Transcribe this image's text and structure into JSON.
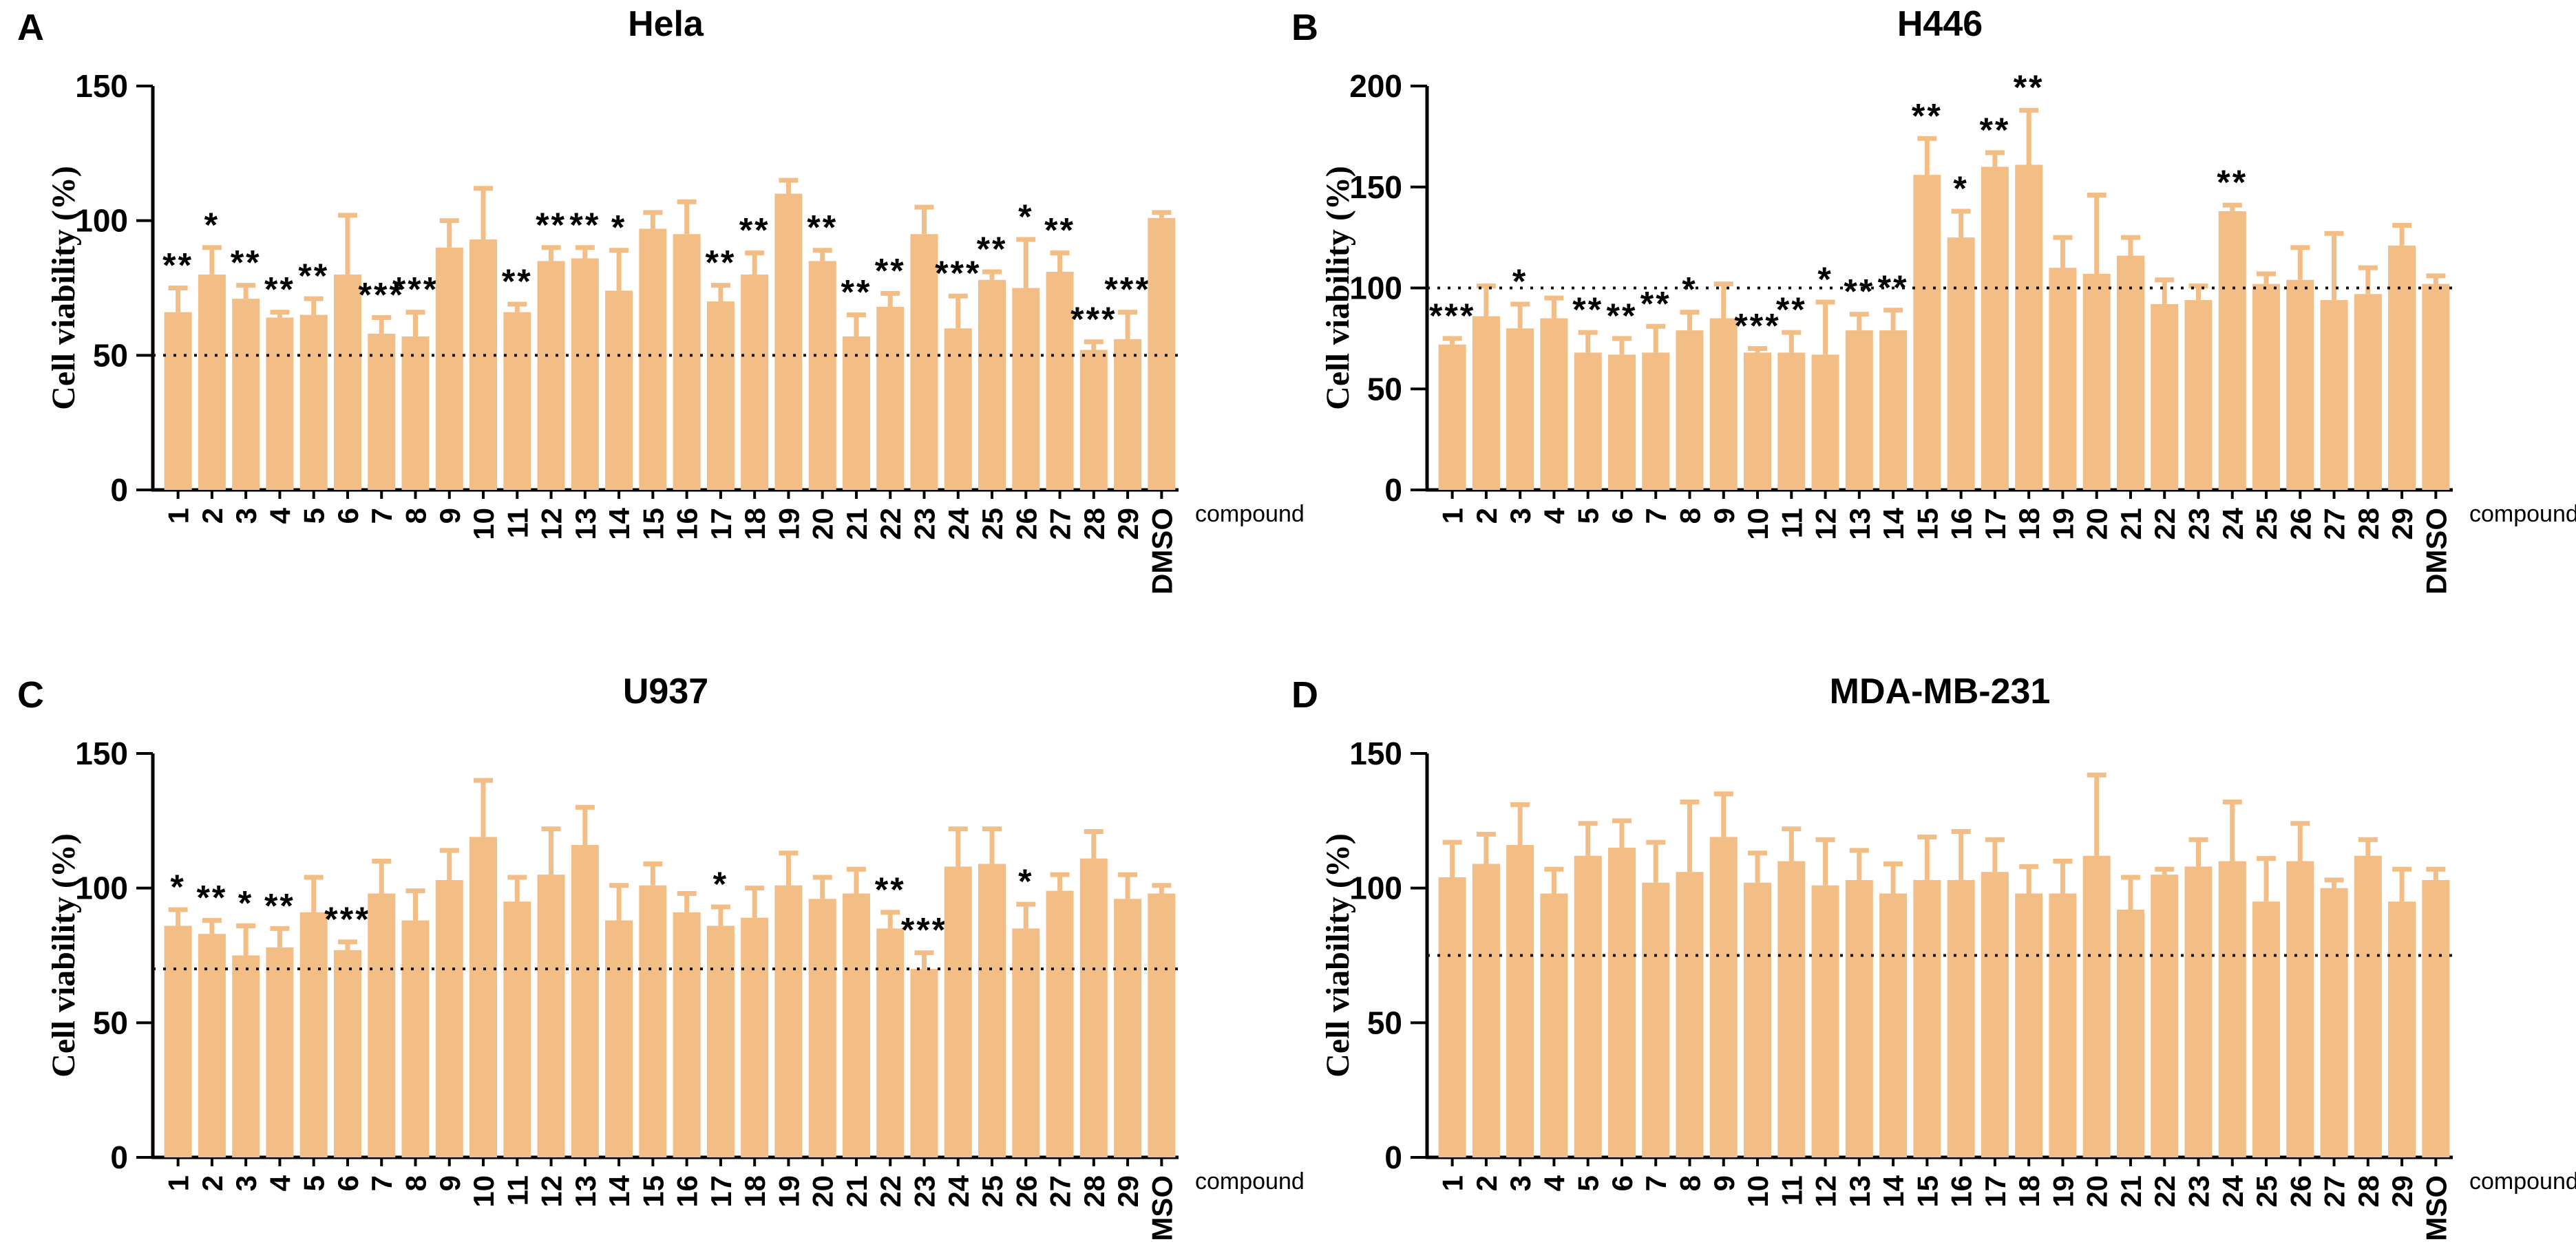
{
  "figure": {
    "background": "#ffffff",
    "xlabel": "compound",
    "ylabel": "Cell viability (%)"
  },
  "colors": {
    "bar": "#F3BE85",
    "error_bar": "#F3BE85",
    "axis": "#000000",
    "text": "#000000",
    "dotted_line": "#111111"
  },
  "chart_data": [
    {
      "type": "bar",
      "panel_letter": "A",
      "title": "Hela",
      "ylabel": "Cell viability (%)",
      "xlabel": "compound",
      "ylim": [
        0,
        150
      ],
      "yticks": [
        0,
        50,
        100,
        150
      ],
      "dotted_line": 50,
      "legend": "none",
      "grid": false,
      "row": 0,
      "col": 0,
      "categories": [
        "1",
        "2",
        "3",
        "4",
        "5",
        "6",
        "7",
        "8",
        "9",
        "10",
        "11",
        "12",
        "13",
        "14",
        "15",
        "16",
        "17",
        "18",
        "19",
        "20",
        "21",
        "22",
        "23",
        "24",
        "25",
        "26",
        "27",
        "28",
        "29",
        "DMSO"
      ],
      "values": [
        66,
        80,
        71,
        64,
        65,
        80,
        58,
        57,
        90,
        93,
        66,
        85,
        86,
        74,
        97,
        95,
        70,
        80,
        110,
        85,
        57,
        68,
        95,
        60,
        78,
        75,
        81,
        52,
        56,
        101
      ],
      "errors": [
        9,
        10,
        5,
        2,
        6,
        22,
        6,
        9,
        10,
        19,
        3,
        5,
        4,
        15,
        6,
        12,
        6,
        8,
        5,
        4,
        8,
        5,
        10,
        12,
        3,
        18,
        7,
        3,
        10,
        2
      ],
      "significance": [
        "**",
        "*",
        "**",
        "**",
        "**",
        null,
        "***",
        "***",
        null,
        null,
        "**",
        "**",
        "**",
        "*",
        null,
        null,
        "**",
        "**",
        null,
        "**",
        "**",
        "**",
        null,
        "***",
        "**",
        "*",
        "**",
        "***",
        "***",
        null
      ]
    },
    {
      "type": "bar",
      "panel_letter": "B",
      "title": "H446",
      "ylabel": "Cell viability (%)",
      "xlabel": "compound",
      "ylim": [
        0,
        200
      ],
      "yticks": [
        0,
        50,
        100,
        150,
        200
      ],
      "dotted_line": 100,
      "legend": "none",
      "grid": false,
      "row": 0,
      "col": 1,
      "categories": [
        "1",
        "2",
        "3",
        "4",
        "5",
        "6",
        "7",
        "8",
        "9",
        "10",
        "11",
        "12",
        "13",
        "14",
        "15",
        "16",
        "17",
        "18",
        "19",
        "20",
        "21",
        "22",
        "23",
        "24",
        "25",
        "26",
        "27",
        "28",
        "29",
        "DMSO"
      ],
      "values": [
        72,
        86,
        80,
        85,
        68,
        67,
        68,
        79,
        85,
        68,
        68,
        67,
        79,
        79,
        156,
        125,
        160,
        161,
        110,
        107,
        116,
        92,
        94,
        138,
        102,
        104,
        94,
        97,
        121,
        102
      ],
      "errors": [
        3,
        15,
        12,
        10,
        10,
        8,
        13,
        9,
        17,
        2,
        10,
        26,
        8,
        10,
        18,
        13,
        7,
        27,
        15,
        39,
        9,
        12,
        7,
        3,
        5,
        16,
        33,
        13,
        10,
        4
      ],
      "significance": [
        "***",
        null,
        "*",
        null,
        "**",
        "**",
        "**",
        "*",
        null,
        "***",
        "**",
        "*",
        "**",
        "**",
        "**",
        "*",
        "**",
        "**",
        null,
        null,
        null,
        null,
        null,
        "**",
        null,
        null,
        null,
        null,
        null,
        null
      ]
    },
    {
      "type": "bar",
      "panel_letter": "C",
      "title": "U937",
      "ylabel": "Cell viability (%)",
      "xlabel": "compound",
      "ylim": [
        0,
        150
      ],
      "yticks": [
        0,
        50,
        100,
        150
      ],
      "dotted_line": 70,
      "legend": "none",
      "grid": false,
      "row": 1,
      "col": 0,
      "categories": [
        "1",
        "2",
        "3",
        "4",
        "5",
        "6",
        "7",
        "8",
        "9",
        "10",
        "11",
        "12",
        "13",
        "14",
        "15",
        "16",
        "17",
        "18",
        "19",
        "20",
        "21",
        "22",
        "23",
        "24",
        "25",
        "26",
        "27",
        "28",
        "29",
        "DMSO"
      ],
      "values": [
        86,
        83,
        75,
        78,
        91,
        77,
        98,
        88,
        103,
        119,
        95,
        105,
        116,
        88,
        101,
        91,
        86,
        89,
        101,
        96,
        98,
        85,
        70,
        108,
        109,
        85,
        99,
        111,
        96,
        98
      ],
      "errors": [
        6,
        5,
        11,
        7,
        13,
        3,
        12,
        11,
        11,
        21,
        9,
        17,
        14,
        13,
        8,
        7,
        7,
        11,
        12,
        8,
        9,
        6,
        6,
        14,
        13,
        9,
        6,
        10,
        9,
        3
      ],
      "significance": [
        "*",
        "**",
        "*",
        "**",
        null,
        "***",
        null,
        null,
        null,
        null,
        null,
        null,
        null,
        null,
        null,
        null,
        "*",
        null,
        null,
        null,
        null,
        "**",
        "***",
        null,
        null,
        "*",
        null,
        null,
        null,
        null
      ]
    },
    {
      "type": "bar",
      "panel_letter": "D",
      "title": "MDA-MB-231",
      "ylabel": "Cell viability (%)",
      "xlabel": "compound",
      "ylim": [
        0,
        150
      ],
      "yticks": [
        0,
        50,
        100,
        150
      ],
      "dotted_line": 75,
      "legend": "none",
      "grid": false,
      "row": 1,
      "col": 1,
      "categories": [
        "1",
        "2",
        "3",
        "4",
        "5",
        "6",
        "7",
        "8",
        "9",
        "10",
        "11",
        "12",
        "13",
        "14",
        "15",
        "16",
        "17",
        "18",
        "19",
        "20",
        "21",
        "22",
        "23",
        "24",
        "25",
        "26",
        "27",
        "28",
        "29",
        "DMSO"
      ],
      "values": [
        104,
        109,
        116,
        98,
        112,
        115,
        102,
        106,
        119,
        102,
        110,
        101,
        103,
        98,
        103,
        103,
        106,
        98,
        98,
        112,
        92,
        105,
        108,
        110,
        95,
        110,
        100,
        112,
        95,
        103
      ],
      "errors": [
        13,
        11,
        15,
        9,
        12,
        10,
        15,
        26,
        16,
        11,
        12,
        17,
        11,
        11,
        16,
        18,
        12,
        10,
        12,
        30,
        12,
        2,
        10,
        22,
        16,
        14,
        3,
        6,
        12,
        4
      ],
      "significance": [
        null,
        null,
        null,
        null,
        null,
        null,
        null,
        null,
        null,
        null,
        null,
        null,
        null,
        null,
        null,
        null,
        null,
        null,
        null,
        null,
        null,
        null,
        null,
        null,
        null,
        null,
        null,
        null,
        null,
        null
      ]
    }
  ]
}
